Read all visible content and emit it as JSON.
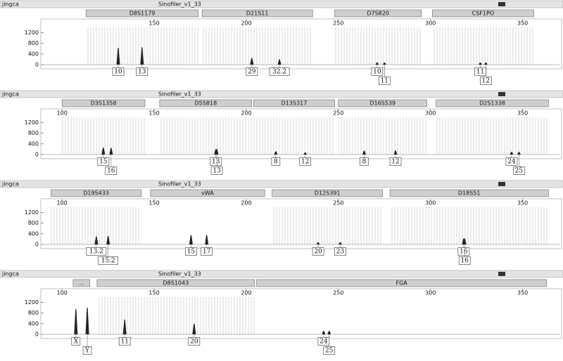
{
  "chart_data": [
    {
      "type": "peak",
      "sample": "jingca",
      "title": "Sinofiler_v1_33",
      "markers": [
        {
          "name": "D8S1179",
          "range": [
            113,
            174
          ]
        },
        {
          "name": "D21S11",
          "range": [
            176,
            236
          ]
        },
        {
          "name": "D7S820",
          "range": [
            248,
            295
          ]
        },
        {
          "name": "CSF1PO",
          "range": [
            301,
            356
          ]
        }
      ],
      "xlim": [
        90,
        370
      ],
      "xticks": [
        150,
        200,
        250,
        300,
        350
      ],
      "ylim": [
        0,
        1400
      ],
      "yticks": [
        0,
        400,
        800,
        1200
      ],
      "x": [
        130.5,
        143.4,
        203,
        218,
        271,
        275,
        327,
        330
      ],
      "values": [
        630,
        650,
        250,
        200,
        80,
        80,
        80,
        80
      ],
      "labels": [
        "10",
        "13",
        "29",
        "32.2",
        "10",
        "11",
        "11",
        "12"
      ]
    },
    {
      "type": "peak",
      "sample": "jingca",
      "title": "Sinofiler_v1_33",
      "markers": [
        {
          "name": "D3S1358",
          "range": [
            100,
            145
          ]
        },
        {
          "name": "D5S818",
          "range": [
            153,
            203
          ]
        },
        {
          "name": "D13S317",
          "range": [
            204,
            248
          ]
        },
        {
          "name": "D16S539",
          "range": [
            250,
            298
          ]
        },
        {
          "name": "D2S1338",
          "range": [
            303,
            364
          ]
        }
      ],
      "xlim": [
        90,
        370
      ],
      "xticks": [
        100,
        150,
        200,
        250,
        300,
        350
      ],
      "ylim": [
        0,
        1400
      ],
      "yticks": [
        0,
        400,
        800,
        1200
      ],
      "x": [
        122.4,
        126.6,
        183.5,
        184,
        216,
        232,
        264,
        281,
        344,
        348
      ],
      "values": [
        260,
        250,
        200,
        200,
        120,
        80,
        150,
        150,
        100,
        100
      ],
      "labels": [
        "15",
        "16",
        "13",
        "13",
        "8",
        "12",
        "8",
        "12",
        "24",
        "25"
      ]
    },
    {
      "type": "peak",
      "sample": "jingca",
      "title": "Sinofiler_v1_33",
      "markers": [
        {
          "name": "D19S433",
          "range": [
            94,
            143
          ]
        },
        {
          "name": "vWA",
          "range": [
            148,
            210
          ]
        },
        {
          "name": "D12S391",
          "range": [
            214,
            274
          ]
        },
        {
          "name": "D18S51",
          "range": [
            278,
            364
          ]
        }
      ],
      "xlim": [
        90,
        370
      ],
      "xticks": [
        100,
        150,
        200,
        250,
        300,
        350
      ],
      "ylim": [
        0,
        1400
      ],
      "yticks": [
        0,
        400,
        800,
        1200
      ],
      "x": [
        118.6,
        125,
        170,
        178.5,
        239,
        251,
        318,
        318.5
      ],
      "values": [
        300,
        320,
        350,
        350,
        80,
        80,
        220,
        220
      ],
      "labels": [
        "13.2",
        "15.2",
        "15",
        "17",
        "20",
        "23",
        "16",
        "16"
      ]
    },
    {
      "type": "peak",
      "sample": "jingca",
      "title": "Sinofiler_v1_33",
      "markers": [
        {
          "name": "...",
          "range": [
            106,
            115
          ]
        },
        {
          "name": "D8S1043",
          "range": [
            119,
            204.5
          ]
        },
        {
          "name": "FGA",
          "range": [
            205.6,
            363
          ]
        }
      ],
      "xlim": [
        90,
        370
      ],
      "xticks": [
        100,
        150,
        200,
        250,
        300,
        350
      ],
      "ylim": [
        0,
        1400
      ],
      "yticks": [
        0,
        400,
        800,
        1200
      ],
      "x": [
        107.5,
        113.7,
        134,
        171.7,
        242,
        245
      ],
      "values": [
        950,
        1000,
        550,
        400,
        130,
        130
      ],
      "labels": [
        "X",
        "Y",
        "11",
        "20",
        "24",
        "25"
      ]
    }
  ]
}
